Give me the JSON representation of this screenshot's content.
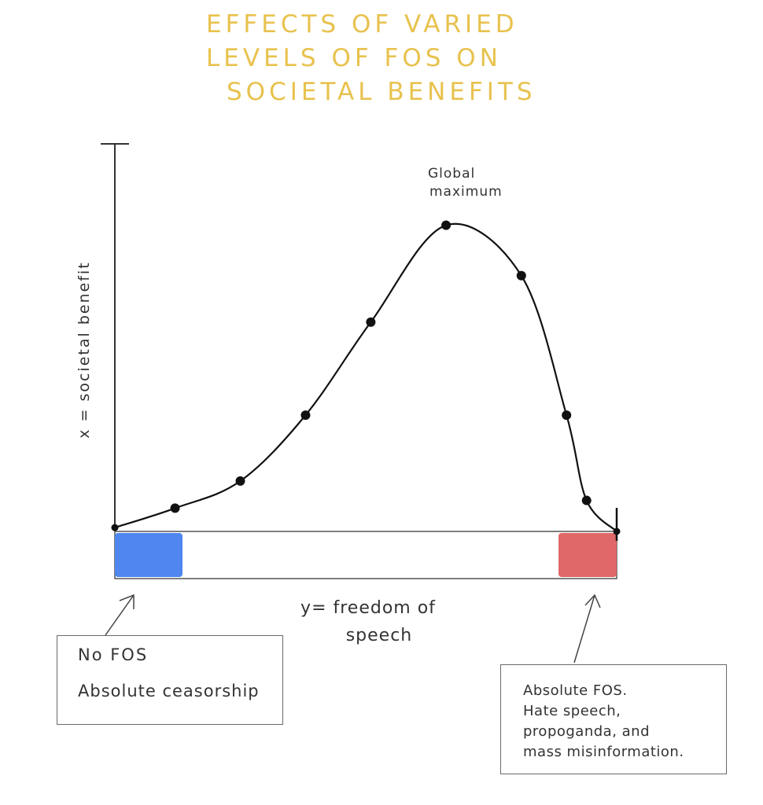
{
  "title_lines": [
    "EFFECTS OF VARIED",
    "LEVELS OF FOS ON",
    "SOCIETAL BENEFITS"
  ],
  "colors": {
    "title": "#e8c24e",
    "curve": "#111111",
    "axis": "#333333",
    "no_fos_band": "#4f86ef",
    "absolute_fos_band": "#e06868"
  },
  "chart_data": {
    "type": "line",
    "title": "EFFECTS OF VARIED LEVELS OF FOS ON SOCIETAL BENEFITS",
    "xlabel_lines": [
      "y= freedom of",
      "speech"
    ],
    "ylabel": "x = societal benefit",
    "xlim": [
      0,
      100
    ],
    "ylim": [
      0,
      100
    ],
    "grid": false,
    "series": [
      {
        "x": [
          0,
          12,
          25,
          38,
          51,
          66,
          81,
          90,
          94,
          100
        ],
        "y": [
          1,
          6,
          13,
          30,
          54,
          79,
          66,
          30,
          8,
          0
        ]
      }
    ],
    "annotations": [
      {
        "label_lines": [
          "Global",
          "maximum"
        ],
        "x": 66,
        "y": 79
      }
    ]
  },
  "notes": {
    "no_fos_line1": "No FOS",
    "no_fos_line2": "Absolute ceasorship",
    "absolute_fos": "Absolute FOS.\nHate speech,\npropoganda, and\nmass misinformation."
  }
}
